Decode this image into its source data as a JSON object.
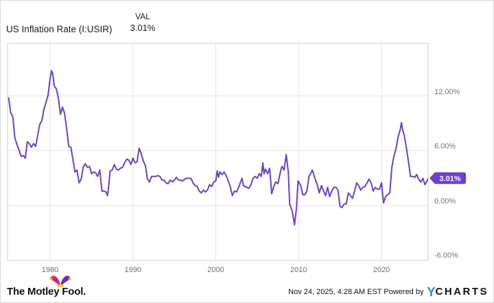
{
  "header": {
    "title": "US Inflation Rate (I:USIR)",
    "val_label": "VAL",
    "val_value": "3.01%"
  },
  "badge": {
    "label": "3.01%"
  },
  "axes": {
    "y_ticks": [
      "12.00%",
      "6.00%",
      "0.00%",
      "-6.00%"
    ],
    "x_ticks": [
      "1980",
      "1990",
      "2000",
      "2010",
      "2020"
    ]
  },
  "footer": {
    "brand": "The Motley Fool.",
    "attribution": "Nov 24, 2025, 4:28 AM EST Powered by",
    "ycharts_y": "Y",
    "ycharts_rest": "CHARTS"
  },
  "colors": {
    "line": "#6A3FD6",
    "badge": "#6A3FD6",
    "grid": "#e3e3e3",
    "border": "#cccccc",
    "tick_text": "#757575",
    "ycharts_blue": "#1E88E5",
    "fool_pink": "#E31C79",
    "fool_purple": "#6C2EB9",
    "fool_gold": "#FFC20E"
  },
  "chart_data": {
    "type": "line",
    "title": "US Inflation Rate (I:USIR)",
    "series": [
      {
        "name": "US Inflation Rate",
        "unit": "%"
      }
    ],
    "last_value": 3.01,
    "x_range": [
      1975.0,
      2025.67
    ],
    "ylim": [
      -6.3,
      17.8
    ],
    "y_gridlines": [
      12,
      6,
      0,
      -6
    ],
    "x_gridlines": [
      1980,
      1990,
      2000,
      2010,
      2020
    ],
    "legend_position": "none",
    "x": [
      1975.0,
      1975.25,
      1975.5,
      1975.75,
      1976.0,
      1976.25,
      1976.5,
      1976.75,
      1977.0,
      1977.25,
      1977.5,
      1977.75,
      1978.0,
      1978.25,
      1978.5,
      1978.75,
      1979.0,
      1979.25,
      1979.5,
      1979.75,
      1980.0,
      1980.17,
      1980.33,
      1980.5,
      1980.75,
      1981.0,
      1981.25,
      1981.5,
      1981.75,
      1982.0,
      1982.25,
      1982.5,
      1982.75,
      1983.0,
      1983.25,
      1983.5,
      1983.75,
      1984.0,
      1984.25,
      1984.5,
      1984.75,
      1985.0,
      1985.25,
      1985.5,
      1985.75,
      1986.0,
      1986.25,
      1986.5,
      1986.75,
      1986.92,
      1987.0,
      1987.25,
      1987.5,
      1987.75,
      1988.0,
      1988.25,
      1988.5,
      1988.75,
      1989.0,
      1989.25,
      1989.5,
      1989.75,
      1990.0,
      1990.25,
      1990.5,
      1990.75,
      1991.0,
      1991.25,
      1991.5,
      1991.75,
      1992.0,
      1992.25,
      1992.5,
      1992.75,
      1993.0,
      1993.25,
      1993.5,
      1993.75,
      1994.0,
      1994.25,
      1994.5,
      1994.75,
      1995.0,
      1995.25,
      1995.5,
      1995.75,
      1996.0,
      1996.25,
      1996.5,
      1996.75,
      1997.0,
      1997.25,
      1997.5,
      1997.75,
      1998.0,
      1998.25,
      1998.5,
      1998.75,
      1999.0,
      1999.25,
      1999.5,
      1999.75,
      2000.0,
      2000.17,
      2000.33,
      2000.5,
      2000.75,
      2001.0,
      2001.25,
      2001.5,
      2001.75,
      2002.0,
      2002.25,
      2002.5,
      2002.75,
      2003.0,
      2003.17,
      2003.33,
      2003.5,
      2003.75,
      2004.0,
      2004.25,
      2004.5,
      2004.75,
      2005.0,
      2005.25,
      2005.5,
      2005.67,
      2005.83,
      2006.0,
      2006.25,
      2006.5,
      2006.75,
      2007.0,
      2007.25,
      2007.5,
      2007.75,
      2007.92,
      2008.0,
      2008.25,
      2008.5,
      2008.75,
      2008.92,
      2009.0,
      2009.25,
      2009.5,
      2009.75,
      2009.92,
      2010.0,
      2010.25,
      2010.5,
      2010.75,
      2011.0,
      2011.25,
      2011.5,
      2011.67,
      2011.83,
      2012.0,
      2012.25,
      2012.5,
      2012.75,
      2013.0,
      2013.25,
      2013.5,
      2013.75,
      2014.0,
      2014.25,
      2014.5,
      2014.75,
      2015.0,
      2015.25,
      2015.5,
      2015.75,
      2016.0,
      2016.25,
      2016.5,
      2016.75,
      2017.0,
      2017.25,
      2017.5,
      2017.75,
      2018.0,
      2018.25,
      2018.5,
      2018.75,
      2019.0,
      2019.25,
      2019.5,
      2019.75,
      2020.0,
      2020.25,
      2020.5,
      2020.75,
      2021.0,
      2021.25,
      2021.5,
      2021.75,
      2022.0,
      2022.25,
      2022.42,
      2022.5,
      2022.75,
      2023.0,
      2023.25,
      2023.5,
      2023.75,
      2024.0,
      2024.25,
      2024.5,
      2024.75,
      2025.0,
      2025.25,
      2025.5,
      2025.67
    ],
    "y": [
      11.8,
      10.2,
      9.7,
      7.4,
      6.7,
      6.1,
      5.4,
      5.5,
      5.2,
      7.0,
      6.8,
      6.4,
      6.8,
      6.5,
      7.7,
      8.9,
      9.3,
      10.5,
      11.3,
      12.1,
      13.9,
      14.8,
      14.4,
      13.1,
      12.8,
      11.8,
      10.0,
      10.8,
      10.1,
      8.4,
      6.5,
      6.4,
      5.1,
      3.7,
      3.9,
      2.5,
      2.9,
      4.2,
      4.6,
      4.2,
      4.3,
      3.5,
      3.7,
      3.6,
      3.2,
      3.9,
      1.6,
      1.6,
      1.5,
      1.1,
      1.5,
      3.8,
      3.9,
      4.5,
      4.0,
      3.9,
      4.1,
      4.2,
      4.7,
      5.1,
      5.0,
      4.5,
      5.2,
      4.7,
      4.8,
      6.3,
      5.7,
      4.9,
      4.4,
      2.9,
      2.6,
      3.2,
      3.2,
      3.2,
      3.3,
      3.2,
      2.8,
      2.8,
      2.5,
      2.4,
      2.8,
      2.6,
      2.8,
      3.1,
      2.8,
      2.8,
      2.7,
      2.9,
      3.0,
      3.0,
      3.0,
      2.5,
      2.2,
      2.1,
      1.6,
      1.4,
      1.7,
      1.5,
      1.7,
      2.3,
      2.1,
      2.6,
      2.7,
      3.8,
      3.1,
      3.7,
      3.4,
      3.7,
      3.3,
      2.7,
      2.1,
      1.1,
      1.6,
      1.5,
      2.0,
      2.6,
      3.0,
      2.2,
      2.1,
      2.0,
      1.9,
      2.3,
      3.0,
      3.2,
      3.0,
      3.5,
      3.2,
      4.7,
      3.5,
      4.0,
      3.5,
      4.1,
      1.3,
      2.1,
      2.6,
      2.4,
      3.5,
      4.1,
      4.3,
      3.9,
      5.6,
      3.7,
      0.1,
      0.0,
      -0.7,
      -2.1,
      -0.2,
      2.7,
      2.6,
      2.2,
      1.2,
      1.2,
      1.6,
      3.2,
      3.6,
      3.9,
      3.4,
      2.9,
      2.3,
      1.4,
      2.2,
      1.6,
      1.1,
      2.0,
      1.0,
      1.6,
      2.0,
      2.0,
      1.7,
      -0.1,
      -0.2,
      0.2,
      0.2,
      1.4,
      1.1,
      0.8,
      1.6,
      2.5,
      2.2,
      1.7,
      2.0,
      2.1,
      2.5,
      2.9,
      2.5,
      1.6,
      2.0,
      1.8,
      1.8,
      2.5,
      0.3,
      1.0,
      1.2,
      1.4,
      4.2,
      5.4,
      6.2,
      7.5,
      8.3,
      9.1,
      8.5,
      7.7,
      6.4,
      4.9,
      3.2,
      3.2,
      3.1,
      3.4,
      2.9,
      2.6,
      3.0,
      2.3,
      2.7,
      3.01
    ]
  }
}
